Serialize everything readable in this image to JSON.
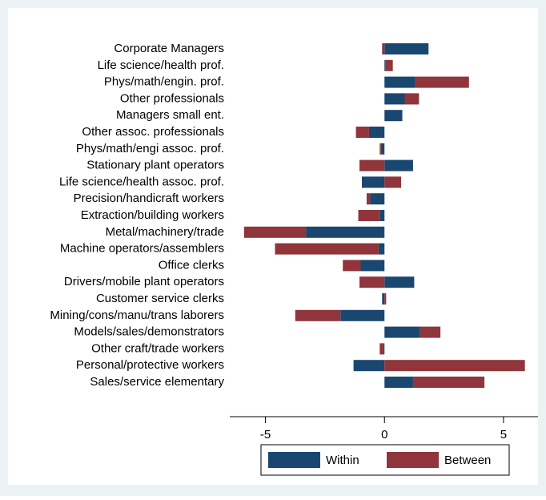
{
  "chart_data": {
    "type": "stacked-bar-horizontal",
    "categories": [
      "Corporate Managers",
      "Life science/health prof.",
      "Phys/math/engin. prof.",
      "Other professionals",
      "Managers small ent.",
      "Other assoc. professionals",
      "Phys/math/engi assoc. prof.",
      "Stationary plant operators",
      "Life science/health assoc. prof.",
      "Precision/handicraft workers",
      "Extraction/building workers",
      "Metal/machinery/trade",
      "Machine operators/assemblers",
      "Office clerks",
      "Drivers/mobile plant operators",
      "Customer service clerks",
      "Mining/cons/manu/trans laborers",
      "Models/sales/demonstrators",
      "Other craft/trade workers",
      "Personal/protective workers",
      "Sales/service elementary"
    ],
    "series": [
      {
        "name": "Within",
        "color": "#1a476f",
        "values": [
          1.85,
          0.05,
          1.3,
          0.85,
          0.75,
          -0.65,
          -0.15,
          1.2,
          -0.95,
          -0.6,
          -0.2,
          -3.3,
          -0.25,
          -1.0,
          1.25,
          -0.1,
          -1.85,
          1.5,
          -0.05,
          -1.3,
          1.2
        ]
      },
      {
        "name": "Between",
        "color": "#90353b",
        "values": [
          -0.1,
          0.3,
          2.25,
          0.6,
          0.0,
          -0.55,
          -0.05,
          -1.05,
          0.7,
          -0.15,
          -0.9,
          -2.6,
          -4.35,
          -0.75,
          -1.05,
          0.07,
          -1.9,
          0.85,
          -0.15,
          5.9,
          3.0
        ]
      }
    ],
    "xlim": [
      -6.5,
      6.45
    ],
    "xticks": [
      -5,
      0,
      5
    ],
    "grid": false,
    "legend": "bottom"
  }
}
